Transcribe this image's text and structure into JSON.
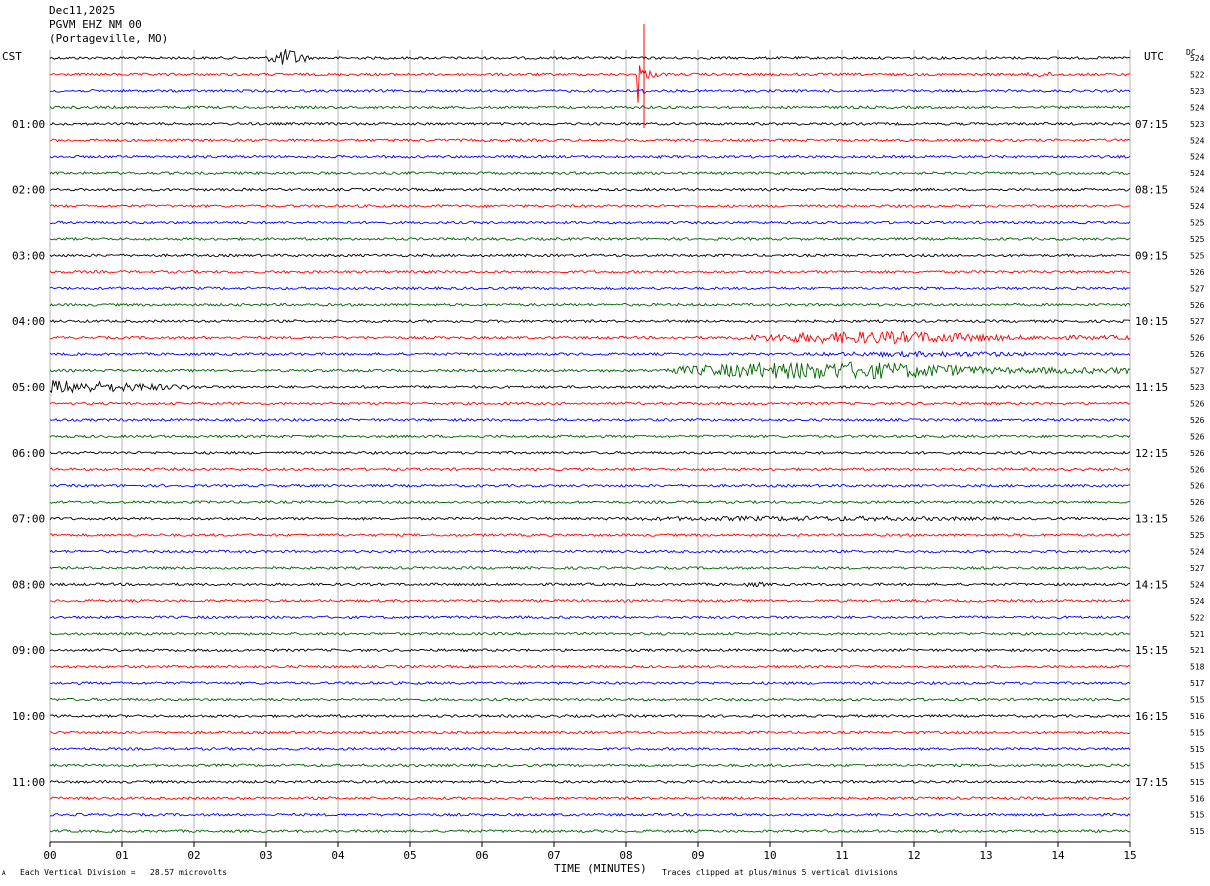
{
  "header": {
    "date": "Dec11,2025",
    "station": "PGVM EHZ NM 00",
    "location": "(Portageville, MO)"
  },
  "left_tz": "CST",
  "right_tz": "UTC",
  "dc_label": "DC",
  "footer": {
    "scale_note": "Each Vertical Division =   28.57 microvolts",
    "clip_note": "Traces clipped at plus/minus 5 vertical divisions",
    "corner_mark": "A"
  },
  "colors": {
    "black": "#000000",
    "red": "#ff0000",
    "blue": "#0000ff",
    "green": "#006400",
    "grid": "#a0a0a0"
  },
  "chart_data": {
    "type": "line",
    "xlabel": "TIME (MINUTES)",
    "xlim": [
      0,
      15
    ],
    "x_ticks": [
      "00",
      "01",
      "02",
      "03",
      "04",
      "05",
      "06",
      "07",
      "08",
      "09",
      "10",
      "11",
      "12",
      "13",
      "14",
      "15"
    ],
    "trace_minutes": 15,
    "trace_count": 48,
    "trace_colors": [
      "black",
      "red",
      "blue",
      "green"
    ],
    "left_hour_labels": [
      "01:00",
      "02:00",
      "03:00",
      "04:00",
      "05:00",
      "06:00",
      "07:00",
      "08:00",
      "09:00",
      "10:00",
      "11:00"
    ],
    "right_hour_labels": [
      "07:15",
      "08:15",
      "09:15",
      "10:15",
      "11:15",
      "12:15",
      "13:15",
      "14:15",
      "15:15",
      "16:15",
      "17:15"
    ],
    "dc_offsets": [
      524,
      522,
      523,
      524,
      523,
      524,
      524,
      524,
      524,
      524,
      525,
      525,
      525,
      526,
      527,
      526,
      527,
      526,
      526,
      527,
      523,
      526,
      526,
      526,
      526,
      526,
      526,
      526,
      526,
      525,
      524,
      527,
      524,
      524,
      522,
      521,
      521,
      518,
      517,
      515,
      516,
      515,
      515,
      515,
      515,
      516,
      515,
      515
    ],
    "events": [
      {
        "trace": 0,
        "start_min": 2.95,
        "end_min": 3.65,
        "amplitude": 5,
        "label": "local burst"
      },
      {
        "trace": 1,
        "start_min": 8.15,
        "end_min": 8.9,
        "amplitude": 4.5,
        "label": "spike with coda"
      },
      {
        "trace": 1,
        "start_min": 13.4,
        "end_min": 14.1,
        "amplitude": 1.5
      },
      {
        "trace": 2,
        "start_min": 8.2,
        "end_min": 8.3,
        "amplitude": 2.5
      },
      {
        "trace": 3,
        "start_min": 8.2,
        "end_min": 8.3,
        "amplitude": 2.5
      },
      {
        "trace": 17,
        "start_min": 9.5,
        "end_min": 15,
        "amplitude": 3.5,
        "label": "teleseism"
      },
      {
        "trace": 18,
        "start_min": 9.5,
        "end_min": 15,
        "amplitude": 1.5
      },
      {
        "trace": 19,
        "start_min": 8.5,
        "end_min": 15,
        "amplitude": 5,
        "label": "teleseism"
      },
      {
        "trace": 20,
        "start_min": 0,
        "end_min": 2.2,
        "amplitude": 4,
        "label": "teleseism coda"
      },
      {
        "trace": 28,
        "start_min": 6,
        "end_min": 15,
        "amplitude": 1.4
      },
      {
        "trace": 32,
        "start_min": 9.5,
        "end_min": 10.1,
        "amplitude": 1.4
      }
    ]
  }
}
